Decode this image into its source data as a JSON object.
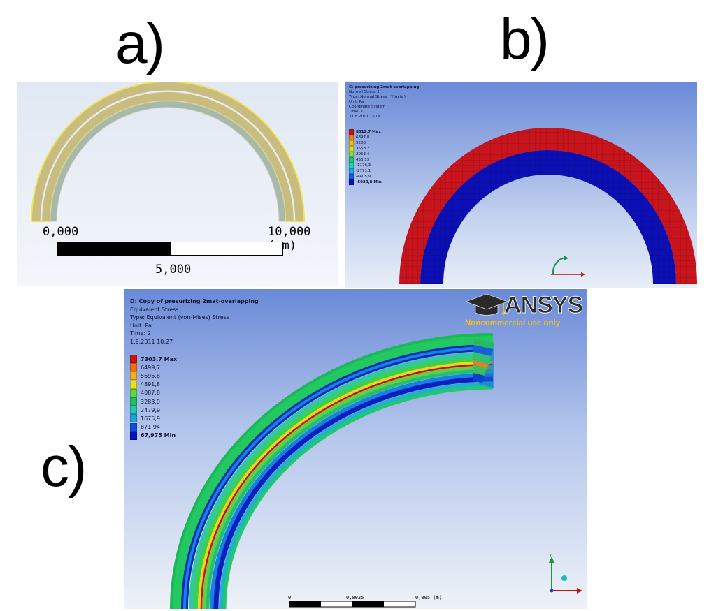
{
  "labels": {
    "a": "a)",
    "b": "b)",
    "c": "c)"
  },
  "panel_a": {
    "scale": {
      "left": "0,000",
      "right": "10,000 (mm)",
      "mid": "5,000"
    },
    "colors": {
      "bg_top": "#e1e8f3",
      "bg_bottom": "#f3f6fb",
      "ring_outer": "#c8bd7e",
      "ring_inner": "#a9b9a9",
      "edge": "#f1e35a"
    }
  },
  "panel_b": {
    "header": [
      "C: presurizing 2mat-overlapping",
      "Normal Stress 2",
      "Type: Normal Stress ( Y Axis )",
      "Unit: Pa",
      "Coordinate System",
      "Time: 1",
      "31.8.2011 15:06"
    ],
    "legend": [
      "8512,7 Max",
      "6897,8",
      "5283",
      "3668,2",
      "2053,4",
      "438,53",
      "-1176,3",
      "-2791,1",
      "-4405,9",
      "-6020,8 Min"
    ],
    "legend_colors": [
      "#d01010",
      "#f08010",
      "#f0c020",
      "#d8e020",
      "#80e040",
      "#20c870",
      "#20d0c0",
      "#20a8e8",
      "#1060e0",
      "#0a10c8"
    ],
    "colors": {
      "outer": "#c8141c",
      "inner": "#0c10b4",
      "bg_top": "#6a8ad8",
      "bg_bottom": "#e8eef8"
    }
  },
  "panel_c": {
    "header": [
      "D: Copy of presurizing 2mat-overlapping",
      "Equivalent Stress",
      "Type: Equivalent (von-Mises) Stress",
      "Unit: Pa",
      "Time: 2",
      "1.9.2011 10:27"
    ],
    "legend": [
      "7303,7 Max",
      "6499,7",
      "5695,8",
      "4891,8",
      "4087,8",
      "3283,9",
      "2479,9",
      "1675,9",
      "871,94",
      "67,975 Min"
    ],
    "legend_colors": [
      "#d01010",
      "#f07010",
      "#f0b020",
      "#e8e020",
      "#60d840",
      "#20c060",
      "#20c8b0",
      "#20a0e0",
      "#1050d8",
      "#0a10c0"
    ],
    "scale": {
      "t0": "0",
      "t1": "0,0025",
      "t2": "0,005 (m)"
    },
    "logo": {
      "name": "ANSYS",
      "sub": "Noncommercial use only",
      "color": "#f0c020"
    },
    "axis": {
      "y": "Y"
    },
    "colors": {
      "bg_top": "#6a8ad8",
      "bg_bottom": "#eef2f8"
    }
  }
}
